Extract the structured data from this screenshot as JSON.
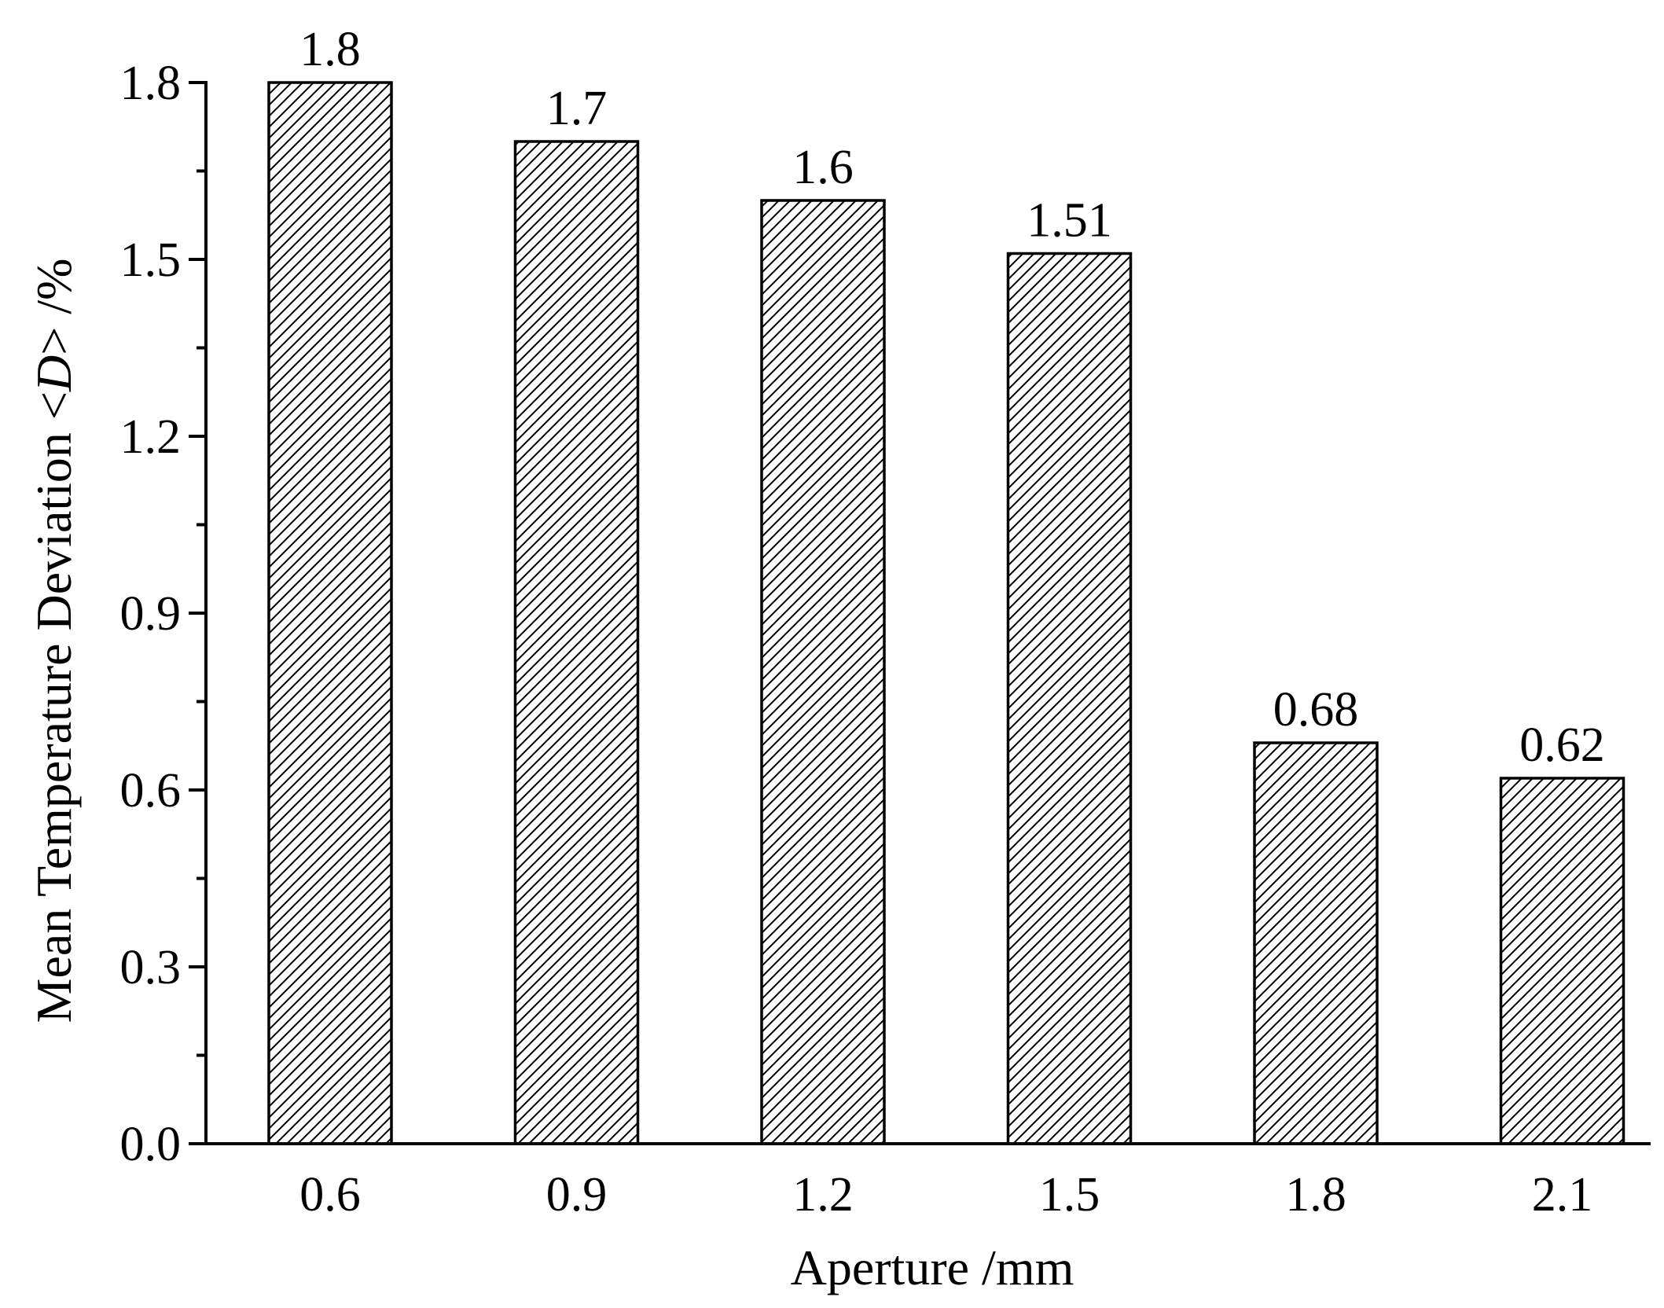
{
  "chart_data": {
    "type": "bar",
    "title": "",
    "xlabel": "Aperture /mm",
    "ylabel": {
      "before": "Mean Temperature Deviation <",
      "italic": "D",
      "after": "> /%"
    },
    "categories": [
      "0.6",
      "0.9",
      "1.2",
      "1.5",
      "1.8",
      "2.1"
    ],
    "values": [
      1.8,
      1.7,
      1.6,
      1.51,
      0.68,
      0.62
    ],
    "data_labels": [
      "1.8",
      "1.7",
      "1.6",
      "1.51",
      "0.68",
      "0.62"
    ],
    "ylim": [
      0,
      1.8
    ],
    "y_ticks": [
      0.0,
      0.3,
      0.6,
      0.9,
      1.2,
      1.5,
      1.8
    ],
    "y_tick_labels": [
      "0.0",
      "0.3",
      "0.6",
      "0.9",
      "1.2",
      "1.5",
      "1.8"
    ],
    "bar_fill": "diagonal-hatch",
    "bar_color": "#000000",
    "background": "#ffffff",
    "grid": false,
    "legend": "none"
  }
}
